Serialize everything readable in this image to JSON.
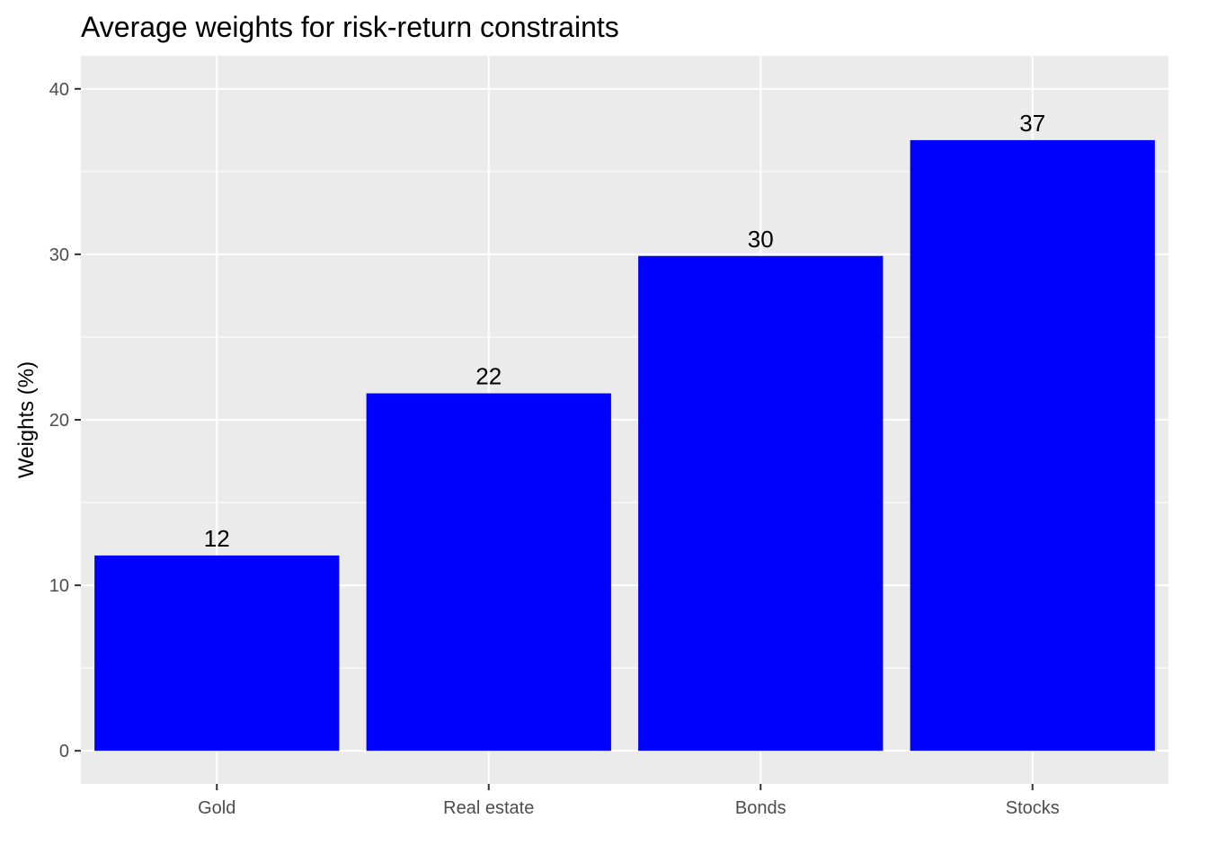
{
  "chart_data": {
    "type": "bar",
    "title": "Average weights for risk-return constraints",
    "xlabel": "",
    "ylabel": "Weights (%)",
    "categories": [
      "Gold",
      "Real estate",
      "Bonds",
      "Stocks"
    ],
    "values": [
      11.8,
      21.6,
      29.9,
      36.9
    ],
    "data_labels": [
      "12",
      "22",
      "30",
      "37"
    ],
    "ylim": [
      -2,
      42
    ],
    "yticks": [
      0,
      10,
      20,
      30,
      40
    ],
    "ytick_labels": [
      "0",
      "10",
      "20",
      "30",
      "40"
    ],
    "grid": true,
    "legend": "none",
    "colors": {
      "bar": "#0000FF",
      "panel": "#EBEBEB",
      "grid": "#FFFFFF",
      "tick": "#333333"
    }
  }
}
